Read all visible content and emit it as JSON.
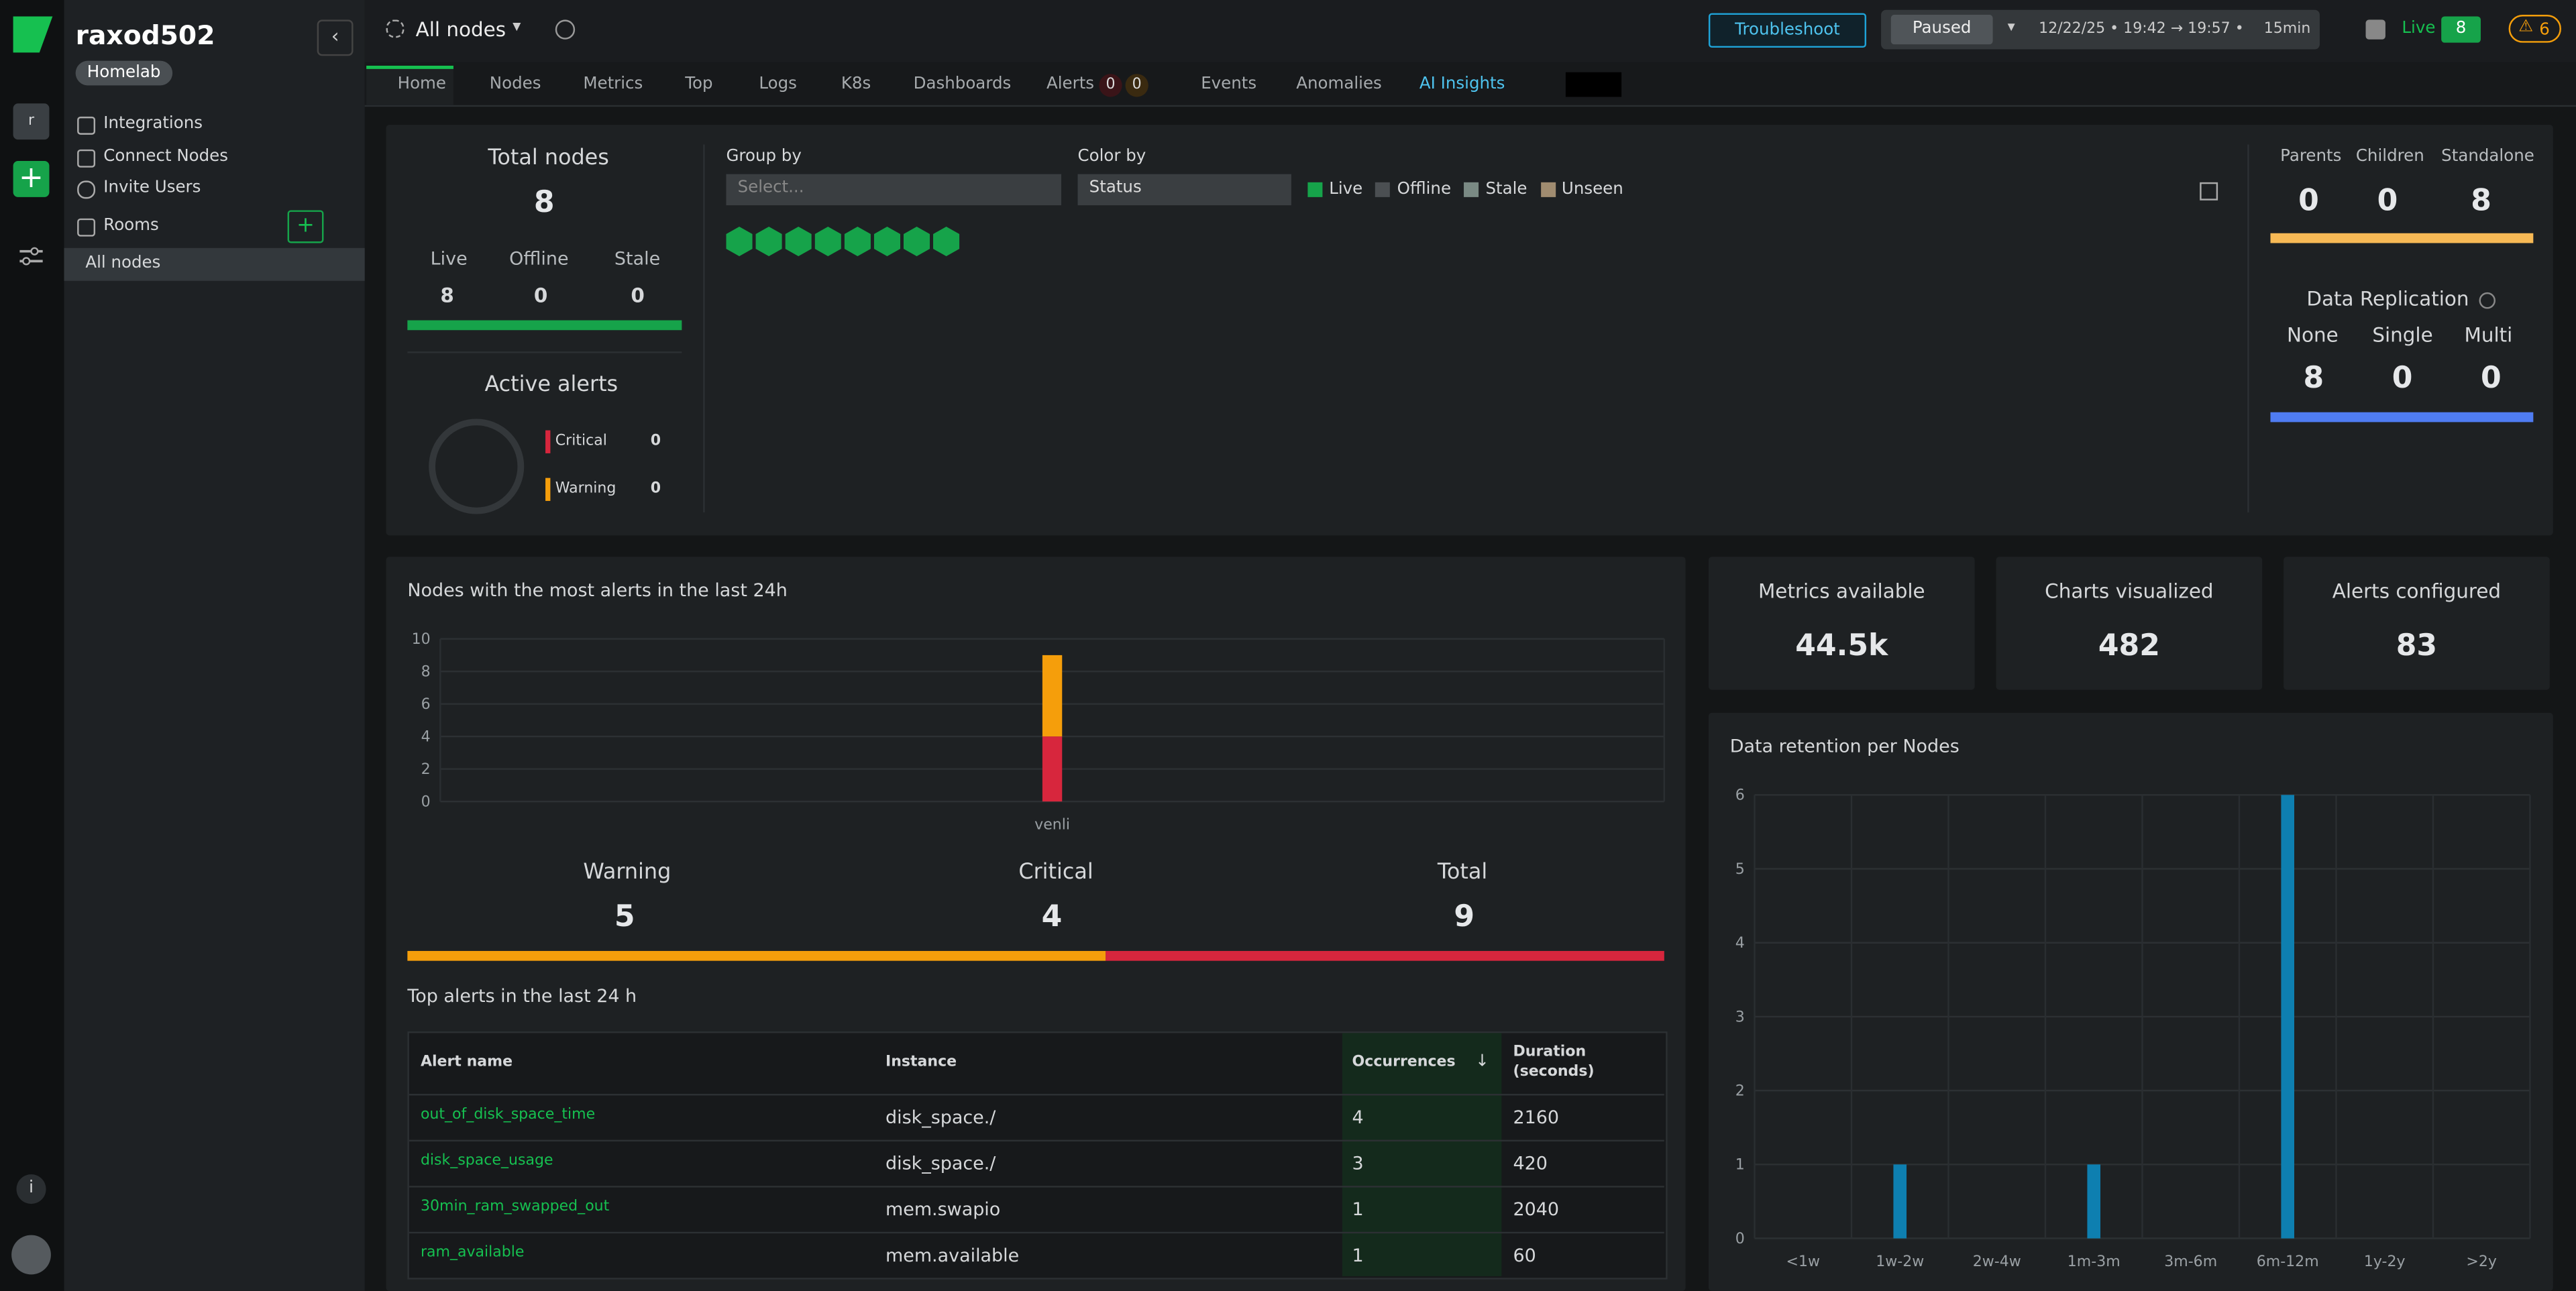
{
  "sidebar": {
    "space": "raxod502",
    "badge": "Homelab",
    "avatar": "r",
    "menu": [
      "Integrations",
      "Connect Nodes",
      "Invite Users"
    ],
    "rooms_label": "Rooms",
    "rooms": [
      "All nodes"
    ]
  },
  "topbar": {
    "room": "All nodes",
    "troubleshoot": "Troubleshoot",
    "paused": "Paused",
    "time_range": "12/22/25 • 19:42 → 19:57 •",
    "duration": "15min",
    "live_label": "Live",
    "live_count": 8,
    "alerts_count": 6
  },
  "tabs": {
    "items": [
      "Home",
      "Nodes",
      "Metrics",
      "Top",
      "Logs",
      "K8s",
      "Dashboards",
      "Alerts",
      "Events",
      "Anomalies",
      "AI Insights"
    ],
    "alerts_critical": 0,
    "alerts_warning": 0
  },
  "nodes": {
    "title": "Total nodes",
    "total": 8,
    "live_label": "Live",
    "live": 8,
    "offline_label": "Offline",
    "offline": 0,
    "stale_label": "Stale",
    "stale": 0
  },
  "active_alerts": {
    "title": "Active alerts",
    "critical_label": "Critical",
    "critical": 0,
    "warning_label": "Warning",
    "warning": 0
  },
  "map": {
    "group_by": "Group by",
    "group_placeholder": "Select...",
    "color_by": "Color by",
    "color_value": "Status",
    "legend": [
      {
        "name": "Live",
        "color": "#16a34a"
      },
      {
        "name": "Offline",
        "color": "#4b4f52"
      },
      {
        "name": "Stale",
        "color": "#7a8a84"
      },
      {
        "name": "Unseen",
        "color": "#a08c70"
      }
    ]
  },
  "topology": {
    "parents_label": "Parents",
    "parents": 0,
    "children_label": "Children",
    "children": 0,
    "standalone_label": "Standalone",
    "standalone": 8
  },
  "replication": {
    "title": "Data Replication",
    "none_label": "None",
    "none": 8,
    "single_label": "Single",
    "single": 0,
    "multi_label": "Multi",
    "multi": 0
  },
  "alerts_chart": {
    "type": "bar",
    "title": "Nodes with the most alerts in the last 24h",
    "categories": [
      "venli"
    ],
    "series": [
      {
        "name": "Critical",
        "color": "#d7263d",
        "values": [
          4
        ]
      },
      {
        "name": "Warning",
        "color": "#f59e0b",
        "values": [
          5
        ]
      }
    ],
    "ylim": [
      0,
      10
    ],
    "yticks": [
      0,
      2,
      4,
      6,
      8,
      10
    ],
    "grid": true
  },
  "alerts_summary": {
    "warning_label": "Warning",
    "warning": 5,
    "critical_label": "Critical",
    "critical": 4,
    "total_label": "Total",
    "total": 9
  },
  "top_alerts": {
    "title": "Top alerts in the last 24 h",
    "columns": [
      "Alert name",
      "Instance",
      "Occurrences",
      "Duration (seconds)"
    ],
    "rows": [
      [
        "out_of_disk_space_time",
        "disk_space./",
        4,
        2160
      ],
      [
        "disk_space_usage",
        "disk_space./",
        3,
        420
      ],
      [
        "30min_ram_swapped_out",
        "mem.swapio",
        1,
        2040
      ],
      [
        "ram_available",
        "mem.available",
        1,
        60
      ]
    ]
  },
  "stats": [
    {
      "label": "Metrics available",
      "value": "44.5k"
    },
    {
      "label": "Charts visualized",
      "value": 482
    },
    {
      "label": "Alerts configured",
      "value": 83
    }
  ],
  "retention_chart": {
    "type": "bar",
    "title": "Data retention per Nodes",
    "categories": [
      "<1w",
      "1w-2w",
      "2w-4w",
      "1m-3m",
      "3m-6m",
      "6m-12m",
      "1y-2y",
      ">2y"
    ],
    "values": [
      0,
      1,
      0,
      1,
      0,
      6,
      0,
      0
    ],
    "color": "#0e7fb0",
    "ylim": [
      0,
      6
    ],
    "yticks": [
      0,
      1,
      2,
      3,
      4,
      5,
      6
    ],
    "grid": true
  }
}
